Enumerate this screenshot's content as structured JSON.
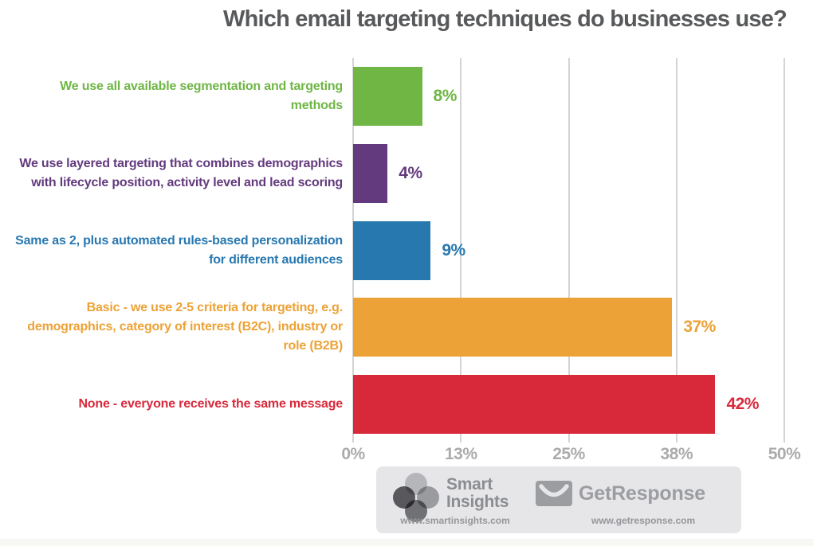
{
  "title": "Which email targeting techniques do businesses use?",
  "chart_data": {
    "type": "bar",
    "orientation": "horizontal",
    "title": "Which email targeting techniques do businesses use?",
    "categories": [
      "We use all available segmentation and targeting methods",
      "We use layered targeting that combines demographics with lifecycle position, activity level and lead scoring",
      "Same as 2, plus automated rules-based personalization for different audiences",
      "Basic - we use 2-5 criteria for targeting, e.g.  demographics, category of interest (B2C), industry or role (B2B)",
      "None - everyone receives the same message"
    ],
    "values": [
      8,
      4,
      9,
      37,
      42
    ],
    "value_labels": [
      "8%",
      "4%",
      "9%",
      "37%",
      "42%"
    ],
    "bar_colors": [
      "#6fb645",
      "#633a7e",
      "#2878b0",
      "#eca236",
      "#d8293b"
    ],
    "xlim": [
      0,
      50
    ],
    "x_ticks": [
      {
        "value": 0,
        "label": "0%"
      },
      {
        "value": 12.5,
        "label": "13%"
      },
      {
        "value": 25,
        "label": "25%"
      },
      {
        "value": 37.5,
        "label": "38%"
      },
      {
        "value": 50,
        "label": "50%"
      }
    ],
    "grid": true,
    "legend": false,
    "xlabel": "",
    "ylabel": ""
  },
  "colors": {
    "title_text": "#58595b",
    "axis_tick_text": "#ababab",
    "gridline": "#d4d4d4",
    "footer_bg": "#e6e6e8",
    "logo_gray": "#939598"
  },
  "footer": {
    "smart_insights": {
      "name_line1": "Smart",
      "name_line2": "Insights",
      "url": "www.smartinsights.com"
    },
    "getresponse": {
      "name": "GetResponse",
      "url": "www.getresponse.com"
    }
  }
}
